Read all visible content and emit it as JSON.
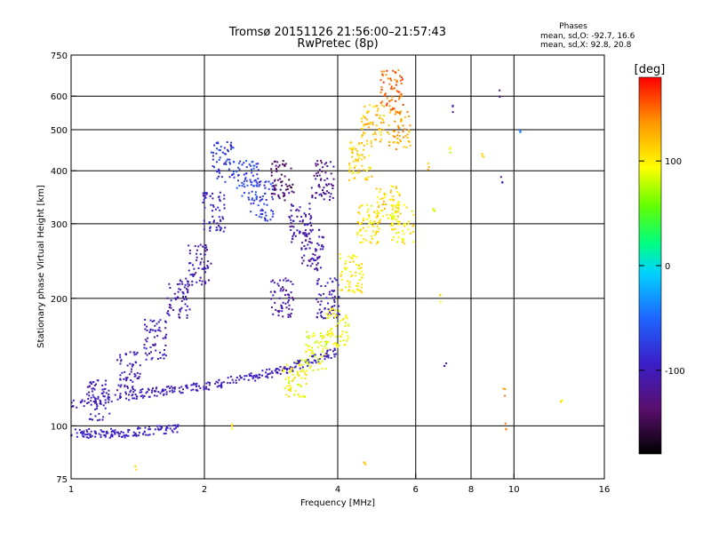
{
  "chart_data": {
    "type": "scatter",
    "title": "Tromsø 20151126 21:56:00–21:57:43",
    "subtitle": "RwPretec (8p)",
    "stats": {
      "heading": "Phases",
      "o_line": "mean, sd,O: -92.7, 16.6",
      "x_line": "mean, sd,X: 92.8, 20.8"
    },
    "xlabel": "Frequency [MHz]",
    "ylabel": "Stationary phase Virtual Height [km]",
    "x_scale": "log",
    "y_scale": "log",
    "xlim": [
      1,
      16
    ],
    "ylim": [
      75,
      750
    ],
    "x_ticks": [
      1,
      2,
      4,
      6,
      8,
      10,
      16
    ],
    "x_tick_labels": [
      "1",
      "2",
      "4",
      "6",
      "8",
      "10",
      "16"
    ],
    "x_grid": [
      2,
      4,
      6,
      8,
      10
    ],
    "y_ticks": [
      75,
      100,
      200,
      300,
      400,
      500,
      600,
      750
    ],
    "y_tick_labels": [
      "75",
      "100",
      "200",
      "300",
      "400",
      "500",
      "600",
      "750"
    ],
    "y_grid": [
      100,
      200,
      300,
      400,
      500,
      600
    ],
    "grid": true,
    "colorbar": {
      "label": "[deg]",
      "ticks": [
        100,
        0,
        -100
      ],
      "tick_labels": [
        "100",
        "0",
        "-100"
      ],
      "range": [
        -180,
        180
      ]
    },
    "series": [
      {
        "kind": "band",
        "values": [
          [
            1.0,
            96,
            -95
          ],
          [
            1.3,
            96,
            -95
          ],
          [
            1.75,
            99,
            -95
          ]
        ]
      },
      {
        "kind": "band",
        "values": [
          [
            1.0,
            112,
            -100
          ],
          [
            1.5,
            120,
            -100
          ],
          [
            2.1,
            125,
            -100
          ],
          [
            3.0,
            135,
            -98
          ],
          [
            4.0,
            150,
            -95
          ]
        ]
      },
      {
        "kind": "cloud",
        "values": [
          [
            1.15,
            115,
            -100
          ],
          [
            1.35,
            135,
            -102
          ],
          [
            1.55,
            160,
            -100
          ],
          [
            1.75,
            200,
            -105
          ],
          [
            1.95,
            240,
            -105
          ],
          [
            2.1,
            320,
            -95
          ],
          [
            2.2,
            420,
            -80
          ],
          [
            2.5,
            380,
            -70
          ],
          [
            2.7,
            340,
            -75
          ],
          [
            3.0,
            200,
            -110
          ],
          [
            3.0,
            380,
            -140
          ],
          [
            3.3,
            300,
            -110
          ],
          [
            3.5,
            260,
            -110
          ],
          [
            3.7,
            380,
            -120
          ],
          [
            3.8,
            200,
            -100
          ]
        ]
      },
      {
        "kind": "cloud",
        "values": [
          [
            3.2,
            130,
            95
          ],
          [
            3.6,
            150,
            90
          ],
          [
            4.0,
            170,
            95
          ],
          [
            4.3,
            230,
            100
          ],
          [
            4.5,
            420,
            110
          ],
          [
            4.7,
            300,
            100
          ],
          [
            4.8,
            520,
            120
          ],
          [
            5.2,
            330,
            110
          ],
          [
            5.6,
            300,
            100
          ],
          [
            5.5,
            500,
            130
          ],
          [
            5.3,
            620,
            150
          ]
        ]
      },
      {
        "kind": "sparse",
        "values": [
          [
            6.4,
            410,
            120
          ],
          [
            6.6,
            320,
            90
          ],
          [
            6.8,
            200,
            110
          ],
          [
            7.0,
            140,
            -100
          ],
          [
            7.3,
            560,
            -120
          ],
          [
            7.2,
            450,
            80
          ],
          [
            8.5,
            440,
            100
          ],
          [
            9.3,
            610,
            -120
          ],
          [
            9.4,
            380,
            -110
          ],
          [
            9.5,
            120,
            130
          ],
          [
            10.3,
            500,
            -40
          ],
          [
            12.8,
            115,
            100
          ],
          [
            9.6,
            100,
            140
          ],
          [
            1.4,
            80,
            120
          ],
          [
            2.3,
            100,
            110
          ],
          [
            4.6,
            82,
            120
          ]
        ]
      }
    ]
  }
}
